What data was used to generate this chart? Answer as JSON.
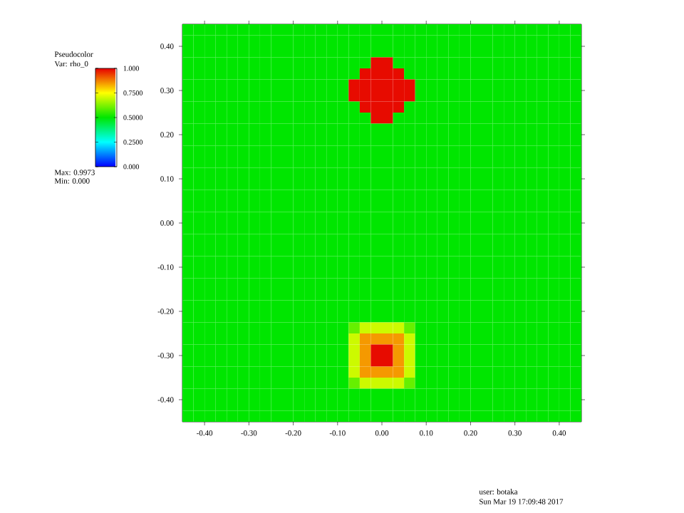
{
  "chart_data": {
    "type": "heatmap",
    "x": [
      -0.4375,
      -0.4125,
      -0.3875,
      -0.3625,
      -0.3375,
      -0.3125,
      -0.2875,
      -0.2625,
      -0.2375,
      -0.2125,
      -0.1875,
      -0.1625,
      -0.1375,
      -0.1125,
      -0.0875,
      -0.0625,
      -0.0375,
      -0.0125,
      0.0125,
      0.0375,
      0.0625,
      0.0875,
      0.1125,
      0.1375,
      0.1625,
      0.1875,
      0.2125,
      0.2375,
      0.2625,
      0.2875,
      0.3125,
      0.3375,
      0.3625,
      0.3875,
      0.4125,
      0.4375
    ],
    "xlim": [
      -0.45,
      0.45
    ],
    "ylim": [
      -0.45,
      0.45
    ],
    "xticks": [
      {
        "value": -0.4,
        "label": "-0.40"
      },
      {
        "value": -0.3,
        "label": "-0.30"
      },
      {
        "value": -0.2,
        "label": "-0.20"
      },
      {
        "value": -0.1,
        "label": "-0.10"
      },
      {
        "value": 0,
        "label": "0.00"
      },
      {
        "value": 0.1,
        "label": "0.10"
      },
      {
        "value": 0.2,
        "label": "0.20"
      },
      {
        "value": 0.3,
        "label": "0.30"
      },
      {
        "value": 0.4,
        "label": "0.40"
      }
    ],
    "yticks": [
      {
        "value": -0.4,
        "label": "-0.40"
      },
      {
        "value": -0.3,
        "label": "-0.30"
      },
      {
        "value": -0.2,
        "label": "-0.20"
      },
      {
        "value": -0.1,
        "label": "-0.10"
      },
      {
        "value": 0,
        "label": "0.00"
      },
      {
        "value": 0.1,
        "label": "0.10"
      },
      {
        "value": 0.2,
        "label": "0.20"
      },
      {
        "value": 0.3,
        "label": "0.30"
      },
      {
        "value": 0.4,
        "label": "0.40"
      }
    ],
    "clim": [
      0,
      1
    ],
    "cticks": [
      {
        "value": 0,
        "label": "0.000"
      },
      {
        "value": 0.25,
        "label": "0.2500"
      },
      {
        "value": 0.5,
        "label": "0.5000"
      },
      {
        "value": 0.75,
        "label": "0.7500"
      },
      {
        "value": 1,
        "label": "1.000"
      }
    ],
    "clabel": "Var: rho_0",
    "annotations": [
      "Pseudocolor",
      "Max: 0.9973",
      "Min: 0.000",
      "user: botaka",
      "Sun Mar 19 17:09:48 2017"
    ],
    "cells": [
      [
        0.5,
        0.5,
        0.5,
        0.5,
        0.5,
        0.5,
        0.5,
        0.5,
        0.5,
        0.5,
        0.5,
        0.5,
        0.5,
        0.5,
        0.5,
        0.5,
        0.5,
        0.5,
        0.5,
        0.5,
        0.5,
        0.5,
        0.5,
        0.5,
        0.5,
        0.5,
        0.5,
        0.5,
        0.5,
        0.5,
        0.5,
        0.5,
        0.5,
        0.5,
        0.5,
        0.5
      ],
      [
        0.5,
        0.5,
        0.5,
        0.5,
        0.5,
        0.5,
        0.5,
        0.5,
        0.5,
        0.5,
        0.5,
        0.5,
        0.5,
        0.5,
        0.5,
        0.5,
        0.5,
        0.5,
        0.5,
        0.5,
        0.5,
        0.5,
        0.5,
        0.5,
        0.5,
        0.5,
        0.5,
        0.5,
        0.5,
        0.5,
        0.5,
        0.5,
        0.5,
        0.5,
        0.5,
        0.5
      ],
      [
        0.5,
        0.5,
        0.5,
        0.5,
        0.5,
        0.5,
        0.5,
        0.5,
        0.5,
        0.5,
        0.5,
        0.5,
        0.5,
        0.5,
        0.5,
        0.5,
        0.5,
        0.5,
        0.5,
        0.5,
        0.5,
        0.5,
        0.5,
        0.5,
        0.5,
        0.5,
        0.5,
        0.5,
        0.5,
        0.5,
        0.5,
        0.5,
        0.5,
        0.5,
        0.5,
        0.5
      ],
      [
        0.5,
        0.5,
        0.5,
        0.5,
        0.5,
        0.5,
        0.5,
        0.5,
        0.5,
        0.5,
        0.5,
        0.5,
        0.5,
        0.5,
        0.5,
        0.5,
        0.5,
        0.99,
        0.99,
        0.5,
        0.5,
        0.5,
        0.5,
        0.5,
        0.5,
        0.5,
        0.5,
        0.5,
        0.5,
        0.5,
        0.5,
        0.5,
        0.5,
        0.5,
        0.5,
        0.5
      ],
      [
        0.5,
        0.5,
        0.5,
        0.5,
        0.5,
        0.5,
        0.5,
        0.5,
        0.5,
        0.5,
        0.5,
        0.5,
        0.5,
        0.5,
        0.5,
        0.5,
        0.99,
        0.99,
        0.99,
        0.99,
        0.5,
        0.5,
        0.5,
        0.5,
        0.5,
        0.5,
        0.5,
        0.5,
        0.5,
        0.5,
        0.5,
        0.5,
        0.5,
        0.5,
        0.5,
        0.5
      ],
      [
        0.5,
        0.5,
        0.5,
        0.5,
        0.5,
        0.5,
        0.5,
        0.5,
        0.5,
        0.5,
        0.5,
        0.5,
        0.5,
        0.5,
        0.5,
        0.99,
        0.99,
        0.99,
        0.99,
        0.99,
        0.99,
        0.5,
        0.5,
        0.5,
        0.5,
        0.5,
        0.5,
        0.5,
        0.5,
        0.5,
        0.5,
        0.5,
        0.5,
        0.5,
        0.5,
        0.5
      ],
      [
        0.5,
        0.5,
        0.5,
        0.5,
        0.5,
        0.5,
        0.5,
        0.5,
        0.5,
        0.5,
        0.5,
        0.5,
        0.5,
        0.5,
        0.5,
        0.99,
        0.99,
        0.99,
        0.99,
        0.99,
        0.99,
        0.5,
        0.5,
        0.5,
        0.5,
        0.5,
        0.5,
        0.5,
        0.5,
        0.5,
        0.5,
        0.5,
        0.5,
        0.5,
        0.5,
        0.5
      ],
      [
        0.5,
        0.5,
        0.5,
        0.5,
        0.5,
        0.5,
        0.5,
        0.5,
        0.5,
        0.5,
        0.5,
        0.5,
        0.5,
        0.5,
        0.5,
        0.5,
        0.99,
        0.99,
        0.99,
        0.99,
        0.5,
        0.5,
        0.5,
        0.5,
        0.5,
        0.5,
        0.5,
        0.5,
        0.5,
        0.5,
        0.5,
        0.5,
        0.5,
        0.5,
        0.5,
        0.5
      ],
      [
        0.5,
        0.5,
        0.5,
        0.5,
        0.5,
        0.5,
        0.5,
        0.5,
        0.5,
        0.5,
        0.5,
        0.5,
        0.5,
        0.5,
        0.5,
        0.5,
        0.5,
        0.99,
        0.99,
        0.5,
        0.5,
        0.5,
        0.5,
        0.5,
        0.5,
        0.5,
        0.5,
        0.5,
        0.5,
        0.5,
        0.5,
        0.5,
        0.5,
        0.5,
        0.5,
        0.5
      ],
      [
        0.5,
        0.5,
        0.5,
        0.5,
        0.5,
        0.5,
        0.5,
        0.5,
        0.5,
        0.5,
        0.5,
        0.5,
        0.5,
        0.5,
        0.5,
        0.5,
        0.5,
        0.5,
        0.5,
        0.5,
        0.5,
        0.5,
        0.5,
        0.5,
        0.5,
        0.5,
        0.5,
        0.5,
        0.5,
        0.5,
        0.5,
        0.5,
        0.5,
        0.5,
        0.5,
        0.5
      ],
      [
        0.5,
        0.5,
        0.5,
        0.5,
        0.5,
        0.5,
        0.5,
        0.5,
        0.5,
        0.5,
        0.5,
        0.5,
        0.5,
        0.5,
        0.5,
        0.5,
        0.5,
        0.5,
        0.5,
        0.5,
        0.5,
        0.5,
        0.5,
        0.5,
        0.5,
        0.5,
        0.5,
        0.5,
        0.5,
        0.5,
        0.5,
        0.5,
        0.5,
        0.5,
        0.5,
        0.5
      ],
      [
        0.5,
        0.5,
        0.5,
        0.5,
        0.5,
        0.5,
        0.5,
        0.5,
        0.5,
        0.5,
        0.5,
        0.5,
        0.5,
        0.5,
        0.5,
        0.5,
        0.5,
        0.5,
        0.5,
        0.5,
        0.5,
        0.5,
        0.5,
        0.5,
        0.5,
        0.5,
        0.5,
        0.5,
        0.5,
        0.5,
        0.5,
        0.5,
        0.5,
        0.5,
        0.5,
        0.5
      ],
      [
        0.5,
        0.5,
        0.5,
        0.5,
        0.5,
        0.5,
        0.5,
        0.5,
        0.5,
        0.5,
        0.5,
        0.5,
        0.5,
        0.5,
        0.5,
        0.5,
        0.5,
        0.5,
        0.5,
        0.5,
        0.5,
        0.5,
        0.5,
        0.5,
        0.5,
        0.5,
        0.5,
        0.5,
        0.5,
        0.5,
        0.5,
        0.5,
        0.5,
        0.5,
        0.5,
        0.5
      ],
      [
        0.5,
        0.5,
        0.5,
        0.5,
        0.5,
        0.5,
        0.5,
        0.5,
        0.5,
        0.5,
        0.5,
        0.5,
        0.5,
        0.5,
        0.5,
        0.5,
        0.5,
        0.5,
        0.5,
        0.5,
        0.5,
        0.5,
        0.5,
        0.5,
        0.5,
        0.5,
        0.5,
        0.5,
        0.5,
        0.5,
        0.5,
        0.5,
        0.5,
        0.5,
        0.5,
        0.5
      ],
      [
        0.5,
        0.5,
        0.5,
        0.5,
        0.5,
        0.5,
        0.5,
        0.5,
        0.5,
        0.5,
        0.5,
        0.5,
        0.5,
        0.5,
        0.5,
        0.5,
        0.5,
        0.5,
        0.5,
        0.5,
        0.5,
        0.5,
        0.5,
        0.5,
        0.5,
        0.5,
        0.5,
        0.5,
        0.5,
        0.5,
        0.5,
        0.5,
        0.5,
        0.5,
        0.5,
        0.5
      ],
      [
        0.5,
        0.5,
        0.5,
        0.5,
        0.5,
        0.5,
        0.5,
        0.5,
        0.5,
        0.5,
        0.5,
        0.5,
        0.5,
        0.5,
        0.5,
        0.5,
        0.5,
        0.5,
        0.5,
        0.5,
        0.5,
        0.5,
        0.5,
        0.5,
        0.5,
        0.5,
        0.5,
        0.5,
        0.5,
        0.5,
        0.5,
        0.5,
        0.5,
        0.5,
        0.5,
        0.5
      ],
      [
        0.5,
        0.5,
        0.5,
        0.5,
        0.5,
        0.5,
        0.5,
        0.5,
        0.5,
        0.5,
        0.5,
        0.5,
        0.5,
        0.5,
        0.5,
        0.5,
        0.5,
        0.5,
        0.5,
        0.5,
        0.5,
        0.5,
        0.5,
        0.5,
        0.5,
        0.5,
        0.5,
        0.5,
        0.5,
        0.5,
        0.5,
        0.5,
        0.5,
        0.5,
        0.5,
        0.5
      ],
      [
        0.5,
        0.5,
        0.5,
        0.5,
        0.5,
        0.5,
        0.5,
        0.5,
        0.5,
        0.5,
        0.5,
        0.5,
        0.5,
        0.5,
        0.5,
        0.5,
        0.5,
        0.5,
        0.5,
        0.5,
        0.5,
        0.5,
        0.5,
        0.5,
        0.5,
        0.5,
        0.5,
        0.5,
        0.5,
        0.5,
        0.5,
        0.5,
        0.5,
        0.5,
        0.5,
        0.5
      ],
      [
        0.5,
        0.5,
        0.5,
        0.5,
        0.5,
        0.5,
        0.5,
        0.5,
        0.5,
        0.5,
        0.5,
        0.5,
        0.5,
        0.5,
        0.5,
        0.5,
        0.5,
        0.5,
        0.5,
        0.5,
        0.5,
        0.5,
        0.5,
        0.5,
        0.5,
        0.5,
        0.5,
        0.5,
        0.5,
        0.5,
        0.5,
        0.5,
        0.5,
        0.5,
        0.5,
        0.5
      ],
      [
        0.5,
        0.5,
        0.5,
        0.5,
        0.5,
        0.5,
        0.5,
        0.5,
        0.5,
        0.5,
        0.5,
        0.5,
        0.5,
        0.5,
        0.5,
        0.5,
        0.5,
        0.5,
        0.5,
        0.5,
        0.5,
        0.5,
        0.5,
        0.5,
        0.5,
        0.5,
        0.5,
        0.5,
        0.5,
        0.5,
        0.5,
        0.5,
        0.5,
        0.5,
        0.5,
        0.5
      ],
      [
        0.5,
        0.5,
        0.5,
        0.5,
        0.5,
        0.5,
        0.5,
        0.5,
        0.5,
        0.5,
        0.5,
        0.5,
        0.5,
        0.5,
        0.5,
        0.5,
        0.5,
        0.5,
        0.5,
        0.5,
        0.5,
        0.5,
        0.5,
        0.5,
        0.5,
        0.5,
        0.5,
        0.5,
        0.5,
        0.5,
        0.5,
        0.5,
        0.5,
        0.5,
        0.5,
        0.5
      ],
      [
        0.5,
        0.5,
        0.5,
        0.5,
        0.5,
        0.5,
        0.5,
        0.5,
        0.5,
        0.5,
        0.5,
        0.5,
        0.5,
        0.5,
        0.5,
        0.5,
        0.5,
        0.5,
        0.5,
        0.5,
        0.5,
        0.5,
        0.5,
        0.5,
        0.5,
        0.5,
        0.5,
        0.5,
        0.5,
        0.5,
        0.5,
        0.5,
        0.5,
        0.5,
        0.5,
        0.5
      ],
      [
        0.5,
        0.5,
        0.5,
        0.5,
        0.5,
        0.5,
        0.5,
        0.5,
        0.5,
        0.5,
        0.5,
        0.5,
        0.5,
        0.5,
        0.5,
        0.5,
        0.5,
        0.5,
        0.5,
        0.5,
        0.5,
        0.5,
        0.5,
        0.5,
        0.5,
        0.5,
        0.5,
        0.5,
        0.5,
        0.5,
        0.5,
        0.5,
        0.5,
        0.5,
        0.5,
        0.5
      ],
      [
        0.5,
        0.5,
        0.5,
        0.5,
        0.5,
        0.5,
        0.5,
        0.5,
        0.5,
        0.5,
        0.5,
        0.5,
        0.5,
        0.5,
        0.5,
        0.5,
        0.5,
        0.5,
        0.5,
        0.5,
        0.5,
        0.5,
        0.5,
        0.5,
        0.5,
        0.5,
        0.5,
        0.5,
        0.5,
        0.5,
        0.5,
        0.5,
        0.5,
        0.5,
        0.5,
        0.5
      ],
      [
        0.5,
        0.5,
        0.5,
        0.5,
        0.5,
        0.5,
        0.5,
        0.5,
        0.5,
        0.5,
        0.5,
        0.5,
        0.5,
        0.5,
        0.5,
        0.5,
        0.5,
        0.5,
        0.5,
        0.5,
        0.5,
        0.5,
        0.5,
        0.5,
        0.5,
        0.5,
        0.5,
        0.5,
        0.5,
        0.5,
        0.5,
        0.5,
        0.5,
        0.5,
        0.5,
        0.5
      ],
      [
        0.5,
        0.5,
        0.5,
        0.5,
        0.5,
        0.5,
        0.5,
        0.5,
        0.5,
        0.5,
        0.5,
        0.5,
        0.5,
        0.5,
        0.5,
        0.5,
        0.5,
        0.5,
        0.5,
        0.5,
        0.5,
        0.5,
        0.5,
        0.5,
        0.5,
        0.5,
        0.5,
        0.5,
        0.5,
        0.5,
        0.5,
        0.5,
        0.5,
        0.5,
        0.5,
        0.5
      ],
      [
        0.5,
        0.5,
        0.5,
        0.5,
        0.5,
        0.5,
        0.5,
        0.5,
        0.5,
        0.5,
        0.5,
        0.5,
        0.5,
        0.5,
        0.5,
        0.5,
        0.5,
        0.5,
        0.5,
        0.5,
        0.5,
        0.5,
        0.5,
        0.5,
        0.5,
        0.5,
        0.5,
        0.5,
        0.5,
        0.5,
        0.5,
        0.5,
        0.5,
        0.5,
        0.5,
        0.5
      ],
      [
        0.5,
        0.5,
        0.5,
        0.5,
        0.5,
        0.5,
        0.5,
        0.5,
        0.5,
        0.5,
        0.5,
        0.5,
        0.5,
        0.5,
        0.5,
        0.6,
        0.7,
        0.7,
        0.7,
        0.7,
        0.6,
        0.5,
        0.5,
        0.5,
        0.5,
        0.5,
        0.5,
        0.5,
        0.5,
        0.5,
        0.5,
        0.5,
        0.5,
        0.5,
        0.5,
        0.5
      ],
      [
        0.5,
        0.5,
        0.5,
        0.5,
        0.5,
        0.5,
        0.5,
        0.5,
        0.5,
        0.5,
        0.5,
        0.5,
        0.5,
        0.5,
        0.5,
        0.7,
        0.85,
        0.85,
        0.85,
        0.85,
        0.7,
        0.5,
        0.5,
        0.5,
        0.5,
        0.5,
        0.5,
        0.5,
        0.5,
        0.5,
        0.5,
        0.5,
        0.5,
        0.5,
        0.5,
        0.5
      ],
      [
        0.5,
        0.5,
        0.5,
        0.5,
        0.5,
        0.5,
        0.5,
        0.5,
        0.5,
        0.5,
        0.5,
        0.5,
        0.5,
        0.5,
        0.5,
        0.7,
        0.85,
        0.99,
        0.99,
        0.85,
        0.7,
        0.5,
        0.5,
        0.5,
        0.5,
        0.5,
        0.5,
        0.5,
        0.5,
        0.5,
        0.5,
        0.5,
        0.5,
        0.5,
        0.5,
        0.5
      ],
      [
        0.5,
        0.5,
        0.5,
        0.5,
        0.5,
        0.5,
        0.5,
        0.5,
        0.5,
        0.5,
        0.5,
        0.5,
        0.5,
        0.5,
        0.5,
        0.7,
        0.85,
        0.99,
        0.99,
        0.85,
        0.7,
        0.5,
        0.5,
        0.5,
        0.5,
        0.5,
        0.5,
        0.5,
        0.5,
        0.5,
        0.5,
        0.5,
        0.5,
        0.5,
        0.5,
        0.5
      ],
      [
        0.5,
        0.5,
        0.5,
        0.5,
        0.5,
        0.5,
        0.5,
        0.5,
        0.5,
        0.5,
        0.5,
        0.5,
        0.5,
        0.5,
        0.5,
        0.7,
        0.85,
        0.85,
        0.85,
        0.85,
        0.7,
        0.5,
        0.5,
        0.5,
        0.5,
        0.5,
        0.5,
        0.5,
        0.5,
        0.5,
        0.5,
        0.5,
        0.5,
        0.5,
        0.5,
        0.5
      ],
      [
        0.5,
        0.5,
        0.5,
        0.5,
        0.5,
        0.5,
        0.5,
        0.5,
        0.5,
        0.5,
        0.5,
        0.5,
        0.5,
        0.5,
        0.5,
        0.6,
        0.7,
        0.7,
        0.7,
        0.7,
        0.6,
        0.5,
        0.5,
        0.5,
        0.5,
        0.5,
        0.5,
        0.5,
        0.5,
        0.5,
        0.5,
        0.5,
        0.5,
        0.5,
        0.5,
        0.5
      ],
      [
        0.5,
        0.5,
        0.5,
        0.5,
        0.5,
        0.5,
        0.5,
        0.5,
        0.5,
        0.5,
        0.5,
        0.5,
        0.5,
        0.5,
        0.5,
        0.5,
        0.5,
        0.5,
        0.5,
        0.5,
        0.5,
        0.5,
        0.5,
        0.5,
        0.5,
        0.5,
        0.5,
        0.5,
        0.5,
        0.5,
        0.5,
        0.5,
        0.5,
        0.5,
        0.5,
        0.5
      ],
      [
        0.5,
        0.5,
        0.5,
        0.5,
        0.5,
        0.5,
        0.5,
        0.5,
        0.5,
        0.5,
        0.5,
        0.5,
        0.5,
        0.5,
        0.5,
        0.5,
        0.5,
        0.5,
        0.5,
        0.5,
        0.5,
        0.5,
        0.5,
        0.5,
        0.5,
        0.5,
        0.5,
        0.5,
        0.5,
        0.5,
        0.5,
        0.5,
        0.5,
        0.5,
        0.5,
        0.5
      ],
      [
        0.5,
        0.5,
        0.5,
        0.5,
        0.5,
        0.5,
        0.5,
        0.5,
        0.5,
        0.5,
        0.5,
        0.5,
        0.5,
        0.5,
        0.5,
        0.5,
        0.5,
        0.5,
        0.5,
        0.5,
        0.5,
        0.5,
        0.5,
        0.5,
        0.5,
        0.5,
        0.5,
        0.5,
        0.5,
        0.5,
        0.5,
        0.5,
        0.5,
        0.5,
        0.5,
        0.5
      ]
    ]
  }
}
